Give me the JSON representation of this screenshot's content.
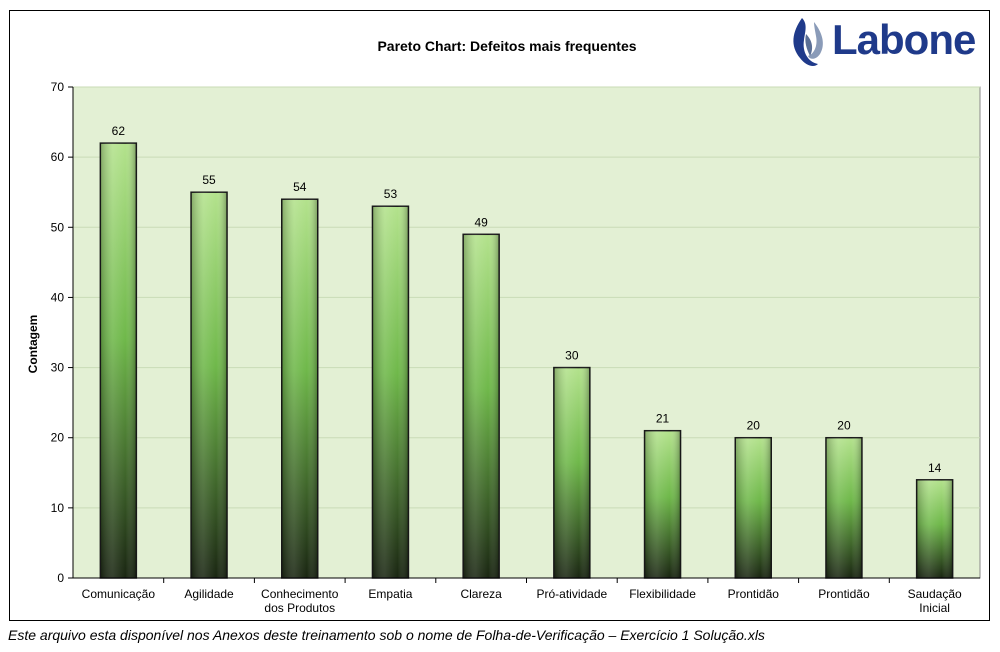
{
  "brand": {
    "name": "Labone"
  },
  "footer_note": "Este arquivo esta disponível nos Anexos deste treinamento sob o nome de Folha-de-Verificação – Exercício 1 Solução.xls",
  "colors": {
    "plot_bg": "#e3f0d4",
    "bar_top": "#a6dc7a",
    "bar_bottom": "#1c2a14",
    "brand_blue": "#1f3a8a"
  },
  "chart_data": {
    "type": "bar",
    "title": "Pareto Chart: Defeitos mais frequentes",
    "xlabel": "",
    "ylabel": "Contagem",
    "ylim": [
      0,
      70
    ],
    "yticks": [
      0,
      10,
      20,
      30,
      40,
      50,
      60,
      70
    ],
    "grid": true,
    "categories": [
      [
        "Comunicação"
      ],
      [
        "Agilidade"
      ],
      [
        "Conhecimento",
        "dos Produtos"
      ],
      [
        "Empatia"
      ],
      [
        "Clareza"
      ],
      [
        "Pró-atividade"
      ],
      [
        "Flexibilidade"
      ],
      [
        "Prontidão"
      ],
      [
        "Prontidão"
      ],
      [
        "Saudação",
        "Inicial"
      ]
    ],
    "values": [
      62,
      55,
      54,
      53,
      49,
      30,
      21,
      20,
      20,
      14
    ]
  }
}
